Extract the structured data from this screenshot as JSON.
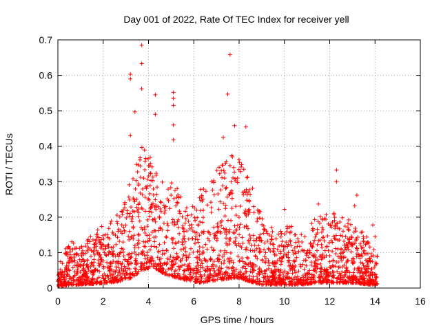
{
  "chart_data": {
    "type": "scatter",
    "title": "Day 001 of 2022, Rate Of TEC Index for receiver yell",
    "xlabel": "GPS time / hours",
    "ylabel": "ROTI / TECUs",
    "xlim": [
      0,
      16
    ],
    "ylim": [
      0,
      0.7
    ],
    "xticks": [
      0,
      2,
      4,
      6,
      8,
      10,
      12,
      14,
      16
    ],
    "yticks": [
      0,
      0.1,
      0.2,
      0.3,
      0.4,
      0.5,
      0.6,
      0.7
    ],
    "xtick_labels": [
      "0",
      "2",
      "4",
      "6",
      "8",
      "10",
      "12",
      "14",
      "16"
    ],
    "ytick_labels": [
      "0",
      "0.1",
      "0.2",
      "0.3",
      "0.4",
      "0.5",
      "0.6",
      "0.7"
    ],
    "grid": true,
    "marker": "+",
    "color": "#ff0000",
    "x_data_range": [
      0,
      14.1
    ],
    "notable_points": [
      {
        "x": 3.7,
        "y": 0.685
      },
      {
        "x": 3.7,
        "y": 0.633
      },
      {
        "x": 3.2,
        "y": 0.603
      },
      {
        "x": 3.2,
        "y": 0.59
      },
      {
        "x": 3.7,
        "y": 0.562
      },
      {
        "x": 7.6,
        "y": 0.658
      },
      {
        "x": 7.5,
        "y": 0.547
      },
      {
        "x": 5.1,
        "y": 0.552
      },
      {
        "x": 5.1,
        "y": 0.535
      },
      {
        "x": 5.1,
        "y": 0.515
      },
      {
        "x": 4.3,
        "y": 0.545
      },
      {
        "x": 3.4,
        "y": 0.497
      },
      {
        "x": 4.3,
        "y": 0.49
      },
      {
        "x": 5.1,
        "y": 0.46
      },
      {
        "x": 7.8,
        "y": 0.458
      },
      {
        "x": 8.3,
        "y": 0.455
      },
      {
        "x": 3.2,
        "y": 0.43
      },
      {
        "x": 5.1,
        "y": 0.418
      },
      {
        "x": 7.3,
        "y": 0.425
      },
      {
        "x": 12.3,
        "y": 0.333
      },
      {
        "x": 13.2,
        "y": 0.262
      },
      {
        "x": 12.3,
        "y": 0.3
      },
      {
        "x": 13.1,
        "y": 0.232
      },
      {
        "x": 11.5,
        "y": 0.237
      },
      {
        "x": 10.0,
        "y": 0.222
      },
      {
        "x": 13.9,
        "y": 0.178
      },
      {
        "x": 14.0,
        "y": 0.145
      },
      {
        "x": 14.1,
        "y": 0.09
      }
    ],
    "activity_envelope": [
      {
        "x": 0.0,
        "lo": 0.005,
        "hi": 0.08
      },
      {
        "x": 0.4,
        "lo": 0.008,
        "hi": 0.14
      },
      {
        "x": 1.0,
        "lo": 0.01,
        "hi": 0.12
      },
      {
        "x": 1.7,
        "lo": 0.012,
        "hi": 0.17
      },
      {
        "x": 2.2,
        "lo": 0.015,
        "hi": 0.18
      },
      {
        "x": 2.8,
        "lo": 0.02,
        "hi": 0.22
      },
      {
        "x": 3.3,
        "lo": 0.03,
        "hi": 0.33
      },
      {
        "x": 3.7,
        "lo": 0.05,
        "hi": 0.4
      },
      {
        "x": 4.2,
        "lo": 0.06,
        "hi": 0.37
      },
      {
        "x": 4.7,
        "lo": 0.04,
        "hi": 0.3
      },
      {
        "x": 5.2,
        "lo": 0.03,
        "hi": 0.31
      },
      {
        "x": 5.8,
        "lo": 0.02,
        "hi": 0.22
      },
      {
        "x": 6.3,
        "lo": 0.015,
        "hi": 0.28
      },
      {
        "x": 6.8,
        "lo": 0.02,
        "hi": 0.33
      },
      {
        "x": 7.3,
        "lo": 0.025,
        "hi": 0.35
      },
      {
        "x": 7.9,
        "lo": 0.03,
        "hi": 0.39
      },
      {
        "x": 8.4,
        "lo": 0.02,
        "hi": 0.33
      },
      {
        "x": 9.0,
        "lo": 0.01,
        "hi": 0.2
      },
      {
        "x": 9.6,
        "lo": 0.01,
        "hi": 0.16
      },
      {
        "x": 10.2,
        "lo": 0.01,
        "hi": 0.18
      },
      {
        "x": 10.8,
        "lo": 0.01,
        "hi": 0.15
      },
      {
        "x": 11.4,
        "lo": 0.015,
        "hi": 0.2
      },
      {
        "x": 12.0,
        "lo": 0.015,
        "hi": 0.22
      },
      {
        "x": 12.5,
        "lo": 0.015,
        "hi": 0.2
      },
      {
        "x": 13.1,
        "lo": 0.015,
        "hi": 0.19
      },
      {
        "x": 13.6,
        "lo": 0.01,
        "hi": 0.15
      },
      {
        "x": 14.1,
        "lo": 0.01,
        "hi": 0.1
      }
    ]
  }
}
